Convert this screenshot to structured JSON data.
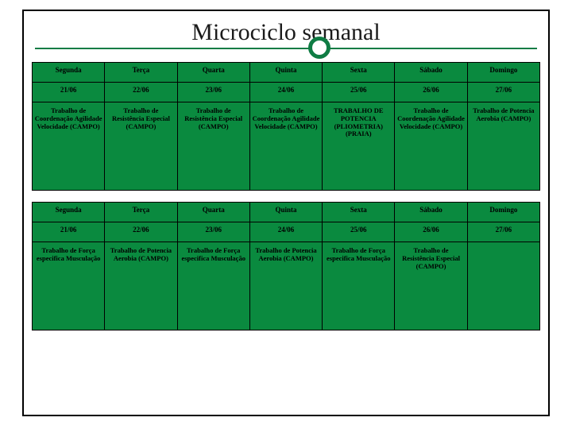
{
  "title": "Microciclo semanal",
  "colors": {
    "accent": "#0f7c44",
    "tableBg": "#0a8a3f",
    "border": "#000000",
    "text": "#000000",
    "bg": "#ffffff"
  },
  "table1": {
    "headers": [
      "Segunda",
      "Terça",
      "Quarta",
      "Quinta",
      "Sexta",
      "Sábado",
      "Domingo"
    ],
    "dates": [
      "21/06",
      "22/06",
      "23/06",
      "24/06",
      "25/06",
      "26/06",
      "27/06"
    ],
    "desc": [
      "Trabalho de Coordenação Agilidade Velocidade (CAMPO)",
      "Trabalho de Resistência Especial (CAMPO)",
      "Trabalho de Resistência Especial (CAMPO)",
      "Trabalho de Coordenação Agilidade Velocidade (CAMPO)",
      "TRABALHO DE POTENCIA (PLIOMETRIA) (PRAIA)",
      "Trabalho de Coordenação Agilidade Velocidade (CAMPO)",
      "Trabalho de Potencia Aerobia (CAMPO)"
    ]
  },
  "table2": {
    "headers": [
      "Segunda",
      "Terça",
      "Quarta",
      "Quinta",
      "Sexta",
      "Sábado",
      "Domingo"
    ],
    "dates": [
      "21/06",
      "22/06",
      "23/06",
      "24/06",
      "25/06",
      "26/06",
      "27/06"
    ],
    "desc": [
      "Trabalho de Força especifica Musculação",
      "Trabalho de Potencia Aerobia (CAMPO)",
      "Trabalho de Força especifica Musculação",
      "Trabalho de Potencia Aerobia (CAMPO)",
      "Trabalho de Força especifica Musculação",
      "Trabalho de Resistência Especial (CAMPO)",
      ""
    ]
  }
}
